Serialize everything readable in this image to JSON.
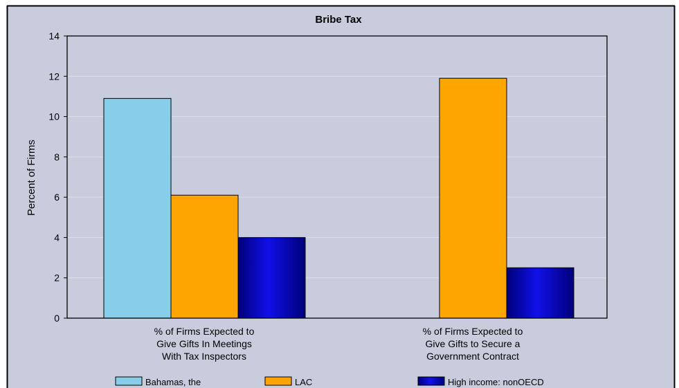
{
  "chart_data": {
    "type": "bar",
    "title": "Bribe Tax",
    "ylabel": "Percent of Firms",
    "xlabel": "",
    "ylim": [
      0,
      14
    ],
    "yticks": [
      0,
      2,
      4,
      6,
      8,
      10,
      12,
      14
    ],
    "grid": true,
    "legend_position": "bottom",
    "categories": [
      [
        "% of Firms Expected to",
        "Give Gifts In Meetings",
        "With Tax Inspectors"
      ],
      [
        "% of Firms Expected to",
        "Give Gifts to Secure a",
        "Government Contract"
      ]
    ],
    "series": [
      {
        "name": "Bahamas, the",
        "values": [
          10.9,
          null
        ],
        "color": "#87CEEB"
      },
      {
        "name": "LAC",
        "values": [
          6.1,
          11.9
        ],
        "color": "#FFA500"
      },
      {
        "name": "High income: nonOECD",
        "values": [
          4.0,
          2.5
        ],
        "color": "#0000B0"
      }
    ],
    "background_color": "#C8CCDC"
  }
}
